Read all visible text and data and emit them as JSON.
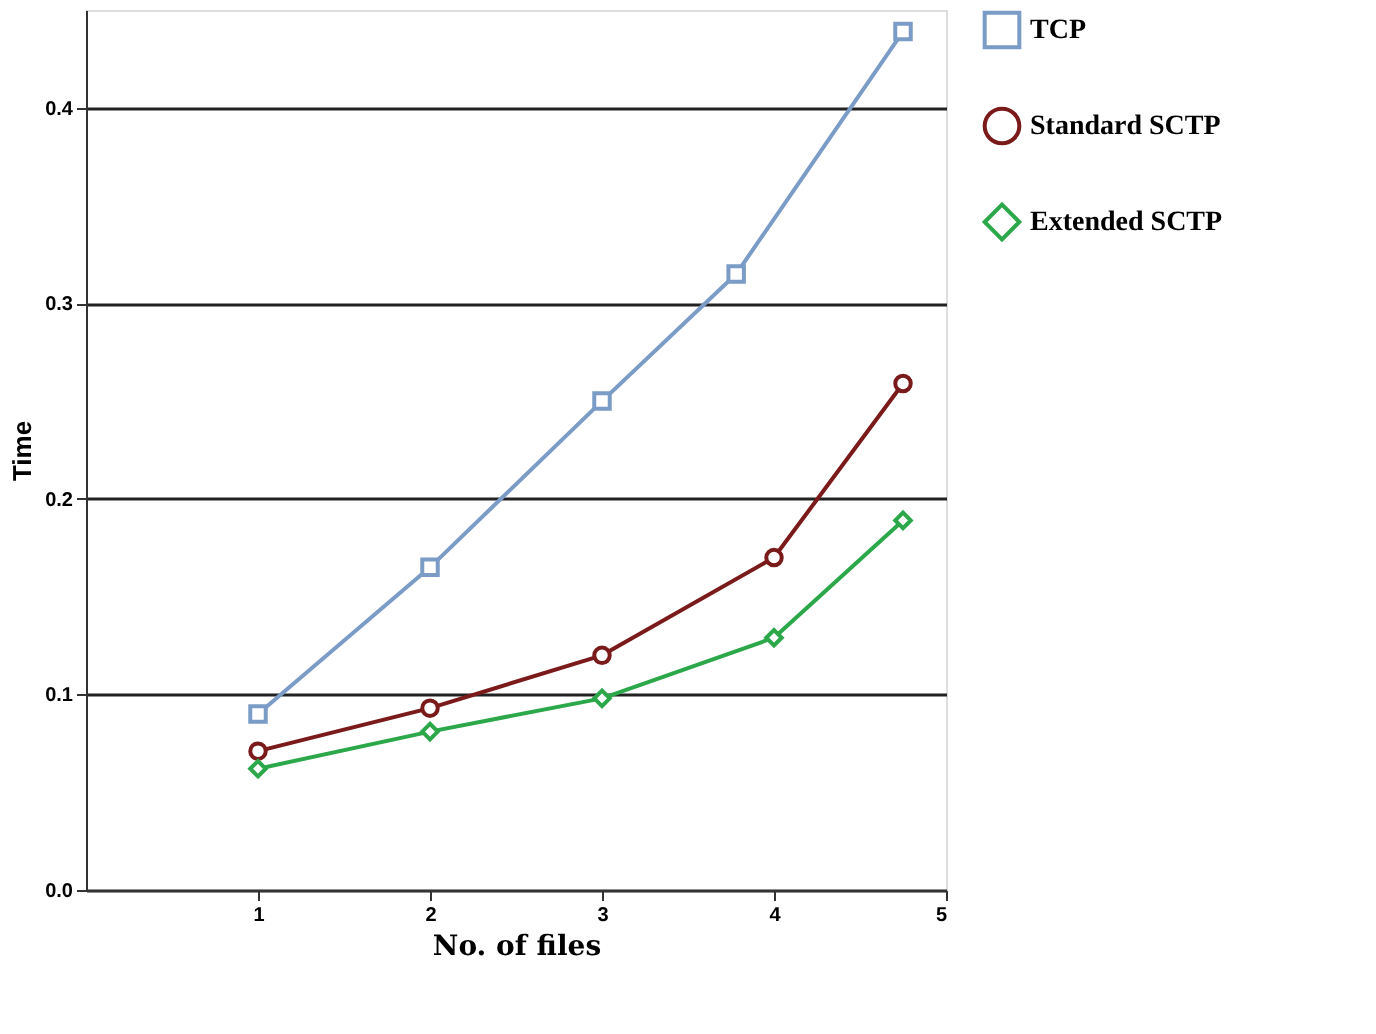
{
  "chart_data": {
    "type": "line",
    "xlabel": "No. of files",
    "ylabel": "Time",
    "x": [
      1,
      2,
      3,
      4,
      4.75
    ],
    "series": [
      {
        "name": "TCP",
        "color": "#7a9cc6",
        "marker": "square",
        "x": [
          1,
          2,
          3,
          3.78,
          4.75
        ],
        "values": [
          0.09,
          0.165,
          0.25,
          0.315,
          0.439
        ]
      },
      {
        "name": "Standard SCTP",
        "color": "#7b1a1a",
        "marker": "circle",
        "values": [
          0.071,
          0.093,
          0.12,
          0.17,
          0.259
        ]
      },
      {
        "name": "Extended SCTP",
        "color": "#2ca84a",
        "marker": "diamond",
        "values": [
          0.062,
          0.081,
          0.098,
          0.129,
          0.189
        ]
      }
    ],
    "xlim": [
      0,
      5
    ],
    "xticks": [
      1,
      2,
      3,
      4,
      5
    ],
    "ylim": [
      0,
      0.45
    ],
    "yticks": [
      {
        "value": 0,
        "label": "0.0"
      },
      0.1,
      0.2,
      0.3,
      0.4
    ],
    "grid": "y",
    "legend": "right"
  }
}
